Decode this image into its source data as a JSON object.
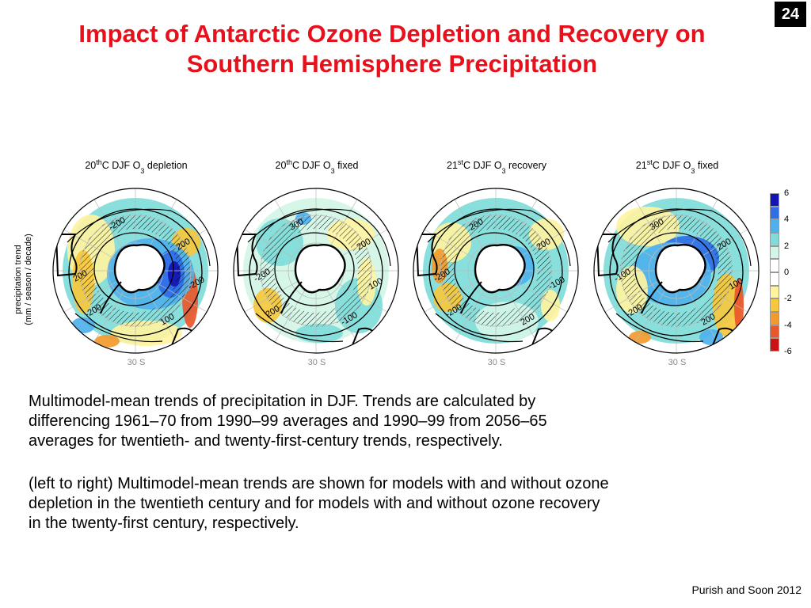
{
  "slide": {
    "number": "24"
  },
  "title": {
    "line1": "Impact of Antarctic Ozone Depletion and Recovery on",
    "line2": "Southern Hemisphere Precipitation"
  },
  "figure": {
    "ylabel_line1": "precipitation trend",
    "ylabel_line2": "(mm / season / decade)",
    "latitude_label": "30 S",
    "panels": [
      {
        "prefix": "20",
        "sup": "th",
        "mid": "C DJF O",
        "sub": "3",
        "suffix": "depletion",
        "contours": [
          "-200",
          "200",
          "200",
          "-200",
          "100",
          "-200"
        ]
      },
      {
        "prefix": "20",
        "sup": "th",
        "mid": "C DJF O",
        "sub": "3",
        "suffix": "fixed",
        "contours": [
          "300",
          "200",
          "-200",
          "200",
          "-100",
          "100"
        ]
      },
      {
        "prefix": "21",
        "sup": "st",
        "mid": "C DJF O",
        "sub": "3",
        "suffix": "recovery",
        "contours": [
          "200",
          "200",
          "-200",
          "-200",
          "200",
          "-100"
        ]
      },
      {
        "prefix": "21",
        "sup": "st",
        "mid": "C DJF O",
        "sub": "3",
        "suffix": "fixed",
        "contours": [
          "300",
          "200",
          "-100",
          "-200",
          "200",
          "100"
        ]
      }
    ],
    "colorbar": {
      "ticks": [
        "6",
        "4",
        "2",
        "0",
        "-2",
        "-4",
        "-6"
      ],
      "colors": [
        "#1414b4",
        "#2f6ee6",
        "#4fb1ec",
        "#7fdcd9",
        "#d2f5e6",
        "#ffffff",
        "#ffffff",
        "#fff3a0",
        "#f7c83c",
        "#f29a2e",
        "#e8562a",
        "#c81414"
      ]
    }
  },
  "caption": {
    "para1_line1": "Multimodel-mean trends of precipitation in DJF. Trends are calculated by",
    "para1_line2": "differencing 1961–70 from 1990–99 averages and 1990–99 from 2056–65",
    "para1_line3": "averages for twentieth- and twenty-first-century trends, respectively.",
    "para2_line1": "(left to right) Multimodel-mean trends are shown for models with and without ozone",
    "para2_line2": "depletion in the twentieth century and for models with and without ozone recovery",
    "para2_line3": "in the twenty-first century, respectively."
  },
  "citation": "Purish and Soon  2012"
}
